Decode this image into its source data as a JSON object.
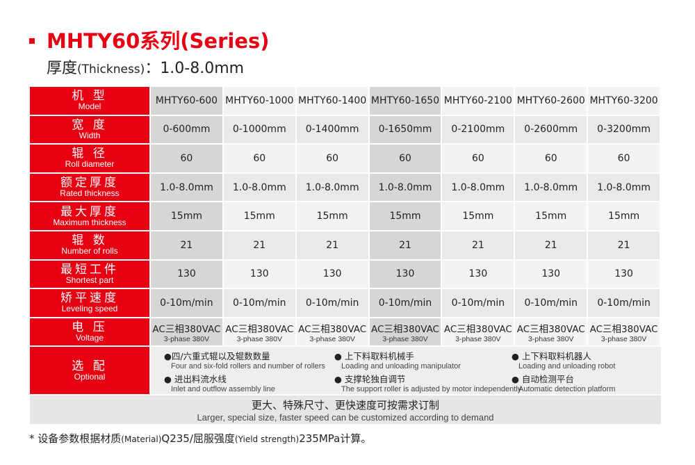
{
  "title": "MHTY60系列(Series)",
  "subtitle": {
    "zh": "厚度",
    "en": "(Thickness)",
    "value": "：1.0-8.0mm"
  },
  "accent_color": "#e60012",
  "highlighted_columns": [
    0,
    3
  ],
  "rows": [
    {
      "zh": "机 型",
      "en": "Model",
      "values": [
        "MHTY60-600",
        "MHTY60-1000",
        "MHTY60-1400",
        "MHTY60-1650",
        "MHTY60-2100",
        "MHTY60-2600",
        "MHTY60-3200"
      ]
    },
    {
      "zh": "宽 度",
      "en": "Width",
      "values": [
        "0-600mm",
        "0-1000mm",
        "0-1400mm",
        "0-1650mm",
        "0-2100mm",
        "0-2600mm",
        "0-3200mm"
      ]
    },
    {
      "zh": "辊 径",
      "en": "Roll diameter",
      "values": [
        "60",
        "60",
        "60",
        "60",
        "60",
        "60",
        "60"
      ]
    },
    {
      "zh": "额定厚度",
      "en": "Rated thickness",
      "values": [
        "1.0-8.0mm",
        "1.0-8.0mm",
        "1.0-8.0mm",
        "1.0-8.0mm",
        "1.0-8.0mm",
        "1.0-8.0mm",
        "1.0-8.0mm"
      ]
    },
    {
      "zh": "最大厚度",
      "en": "Maximum thickness",
      "values": [
        "15mm",
        "15mm",
        "15mm",
        "15mm",
        "15mm",
        "15mm",
        "15mm"
      ]
    },
    {
      "zh": "辊 数",
      "en": "Number of rolls",
      "values": [
        "21",
        "21",
        "21",
        "21",
        "21",
        "21",
        "21"
      ]
    },
    {
      "zh": "最短工件",
      "en": "Shortest part",
      "values": [
        "130",
        "130",
        "130",
        "130",
        "130",
        "130",
        "130"
      ]
    },
    {
      "zh": "矫平速度",
      "en": "Leveling speed",
      "values": [
        "0-10m/min",
        "0-10m/min",
        "0-10m/min",
        "0-10m/min",
        "0-10m/min",
        "0-10m/min",
        "0-10m/min"
      ]
    },
    {
      "zh": "电 压",
      "en": "Voltage",
      "values": [
        "AC三相380VAC",
        "AC三相380VAC",
        "AC三相380VAC",
        "AC三相380VAC",
        "AC三相380VAC",
        "AC三相380VAC",
        "AC三相380VAC"
      ],
      "values2": [
        "3-phase 380V",
        "3-phase 380V",
        "3-phase 380V",
        "3-phase 380V",
        "3-phase 380V",
        "3-phase 380V",
        "3-phase 380V"
      ]
    }
  ],
  "optional": {
    "zh": "选 配",
    "en": "Optional",
    "items": [
      {
        "zh": "●四/六重式辊以及辊数数量",
        "en": "Four and six-fold rollers and number of rollers"
      },
      {
        "zh": "● 上下料取料机械手",
        "en": "Loading and unloading manipulator"
      },
      {
        "zh": "● 上下料取料机器人",
        "en": "Loading and unloading robot"
      },
      {
        "zh": "● 进出料流水线",
        "en": "Inlet and outflow assembly line"
      },
      {
        "zh": "● 支撑轮独自调节",
        "en": "The support roller is adjusted by motor independently"
      },
      {
        "zh": "● 自动检测平台",
        "en": "Automatic detection platform"
      }
    ]
  },
  "footer": {
    "zh": "更大、特殊尺寸、更快速度可按需求订制",
    "en": "Larger, special size, faster speed can be customized according to demand"
  },
  "note": {
    "a": "* 设备参数根据材质",
    "b": "(Material)",
    "c": "Q235/屈服强度",
    "d": "(Yield strength)",
    "e": "235MPa计算。"
  }
}
